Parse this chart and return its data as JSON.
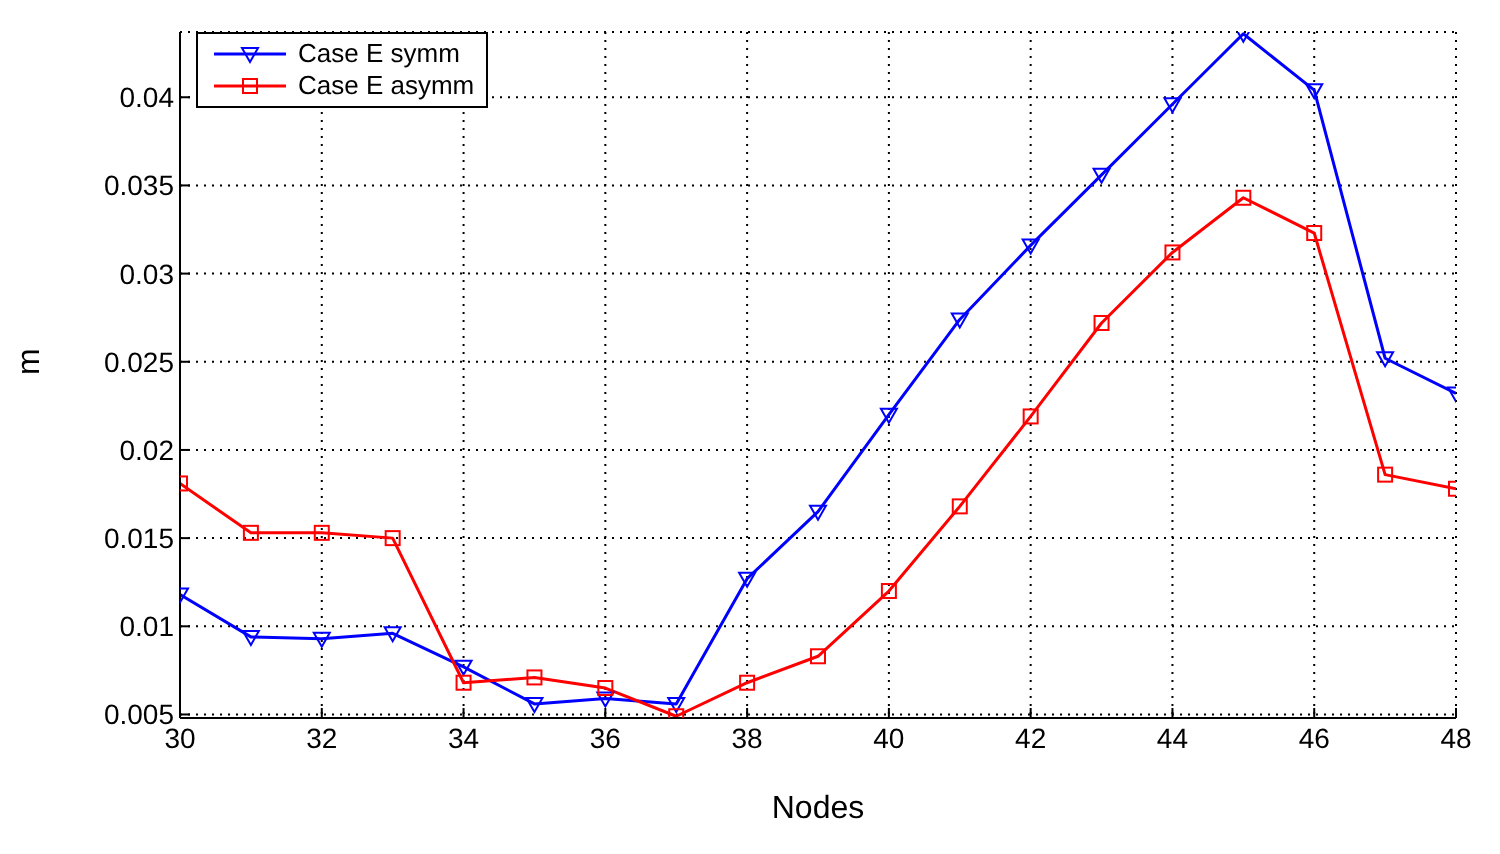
{
  "chart_data": {
    "type": "line",
    "xlabel": "Nodes",
    "ylabel": "m",
    "x": [
      30,
      31,
      32,
      33,
      34,
      35,
      36,
      37,
      38,
      39,
      40,
      41,
      42,
      43,
      44,
      45,
      46,
      47,
      48
    ],
    "series": [
      {
        "name": "Case E symm",
        "color": "#0000ff",
        "marker": "triangle",
        "values": [
          0.0118,
          0.0094,
          0.0093,
          0.0096,
          0.0077,
          0.0056,
          0.0059,
          0.0056,
          0.0127,
          0.0165,
          0.022,
          0.0274,
          0.0316,
          0.0356,
          0.0396,
          0.0436,
          0.0404,
          0.0252,
          0.0232
        ]
      },
      {
        "name": "Case E asymm",
        "color": "#ff0000",
        "marker": "square",
        "values": [
          0.0181,
          0.0153,
          0.0153,
          0.015,
          0.0068,
          0.0071,
          0.0065,
          0.0049,
          0.0068,
          0.0083,
          0.012,
          0.0168,
          0.0219,
          0.0272,
          0.0312,
          0.0343,
          0.0323,
          0.0186,
          0.0178
        ]
      }
    ],
    "xlim": [
      30,
      48
    ],
    "xticks": [
      30,
      32,
      34,
      36,
      38,
      40,
      42,
      44,
      46,
      48
    ],
    "ylim": [
      0.0048,
      0.0437
    ],
    "yticks": [
      0.005,
      0.01,
      0.015,
      0.02,
      0.025,
      0.03,
      0.035,
      0.04
    ],
    "grid": true,
    "legend": "top left",
    "line_style": "solid"
  }
}
